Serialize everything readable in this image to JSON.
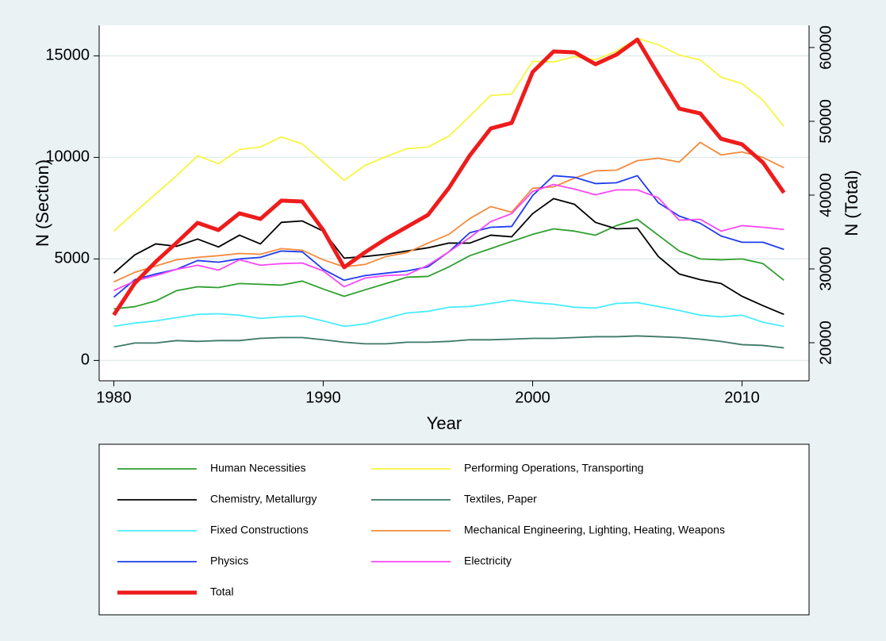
{
  "chart_data": {
    "type": "line",
    "x_label": "Year",
    "y_label": "N (Section)",
    "y2_label": "N (Total)",
    "x": [
      1980,
      1981,
      1982,
      1983,
      1984,
      1985,
      1986,
      1987,
      1988,
      1989,
      1990,
      1991,
      1992,
      1993,
      1994,
      1995,
      1996,
      1997,
      1998,
      1999,
      2000,
      2001,
      2002,
      2003,
      2004,
      2005,
      2006,
      2007,
      2008,
      2009,
      2010,
      2011,
      2012
    ],
    "xlim": [
      1979.3,
      2013.2
    ],
    "xticks": [
      1980,
      1990,
      2000,
      2010
    ],
    "ylim": [
      -1000,
      16500
    ],
    "yticks": [
      0,
      5000,
      10000,
      15000
    ],
    "y2lim": [
      14840,
      63000
    ],
    "y2ticks": [
      20000,
      30000,
      40000,
      50000,
      60000
    ],
    "grid": true,
    "series": [
      {
        "name": "Human Necessities",
        "color": "#2ea02e",
        "values": [
          2540,
          2650,
          2930,
          3440,
          3630,
          3590,
          3790,
          3750,
          3710,
          3910,
          3520,
          3160,
          3480,
          3790,
          4100,
          4140,
          4610,
          5160,
          5510,
          5860,
          6210,
          6480,
          6370,
          6170,
          6640,
          6950,
          6170,
          5390,
          5000,
          4960,
          5000,
          4770,
          3950
        ]
      },
      {
        "name": "Performing Operations, Transporting",
        "color": "#f7f540",
        "values": [
          6370,
          7300,
          8200,
          9100,
          10080,
          9690,
          10390,
          10510,
          11010,
          10660,
          9770,
          8870,
          9610,
          10040,
          10430,
          10510,
          11050,
          12030,
          13050,
          13120,
          14730,
          14700,
          14960,
          14800,
          15230,
          15860,
          15550,
          15040,
          14800,
          13950,
          13630,
          12810,
          11520
        ]
      },
      {
        "name": "Chemistry, Metallurgy",
        "color": "#000000",
        "values": [
          4300,
          5200,
          5740,
          5620,
          5980,
          5590,
          6170,
          5740,
          6800,
          6870,
          6370,
          5040,
          5120,
          5230,
          5390,
          5550,
          5780,
          5780,
          6170,
          6090,
          7230,
          7970,
          7690,
          6800,
          6480,
          6520,
          5120,
          4260,
          3980,
          3790,
          3160,
          2700,
          2270
        ]
      },
      {
        "name": "Textiles, Paper",
        "color": "#3d7868",
        "values": [
          660,
          860,
          860,
          980,
          940,
          980,
          980,
          1090,
          1130,
          1130,
          1020,
          900,
          820,
          820,
          900,
          900,
          940,
          1020,
          1020,
          1050,
          1090,
          1090,
          1130,
          1170,
          1170,
          1210,
          1170,
          1130,
          1050,
          940,
          780,
          740,
          620
        ]
      },
      {
        "name": "Fixed Constructions",
        "color": "#48ecfb",
        "values": [
          1680,
          1840,
          1950,
          2110,
          2270,
          2300,
          2230,
          2070,
          2150,
          2190,
          1950,
          1680,
          1800,
          2070,
          2340,
          2420,
          2620,
          2660,
          2810,
          2970,
          2850,
          2770,
          2620,
          2580,
          2810,
          2850,
          2660,
          2460,
          2230,
          2150,
          2230,
          1880,
          1680
        ]
      },
      {
        "name": "Mechanical Engineering, Lighting, Heating, Weapons",
        "color": "#f58a3c",
        "values": [
          3870,
          4340,
          4650,
          4960,
          5080,
          5160,
          5270,
          5230,
          5510,
          5430,
          4960,
          4610,
          4730,
          5120,
          5310,
          5780,
          6210,
          6990,
          7580,
          7300,
          8480,
          8550,
          8980,
          9340,
          9370,
          9840,
          9960,
          9770,
          10740,
          10120,
          10270,
          10000,
          9490
        ]
      },
      {
        "name": "Physics",
        "color": "#1f3cf0",
        "values": [
          3120,
          3980,
          4260,
          4490,
          4920,
          4840,
          5000,
          5080,
          5390,
          5350,
          4490,
          3950,
          4180,
          4300,
          4410,
          4610,
          5350,
          6290,
          6560,
          6600,
          8120,
          9100,
          9020,
          8710,
          8750,
          9100,
          7770,
          7110,
          6760,
          6130,
          5820,
          5820,
          5470
        ]
      },
      {
        "name": "Electricity",
        "color": "#f948f5",
        "values": [
          3440,
          3910,
          4180,
          4490,
          4690,
          4450,
          4960,
          4690,
          4770,
          4800,
          4410,
          3630,
          4060,
          4180,
          4220,
          4690,
          5350,
          6050,
          6840,
          7230,
          8320,
          8670,
          8440,
          8160,
          8400,
          8400,
          8010,
          6910,
          6950,
          6370,
          6640,
          6560,
          6450
        ]
      },
      {
        "name": "Total",
        "color": "#ee1c1c",
        "axis": "y2",
        "values": [
          23760,
          28060,
          30970,
          33550,
          36240,
          35270,
          37530,
          36770,
          39250,
          39140,
          35270,
          30220,
          32260,
          34090,
          35700,
          37310,
          40970,
          45380,
          49030,
          49780,
          56670,
          59460,
          59350,
          57740,
          59030,
          61080,
          56340,
          51720,
          51080,
          47630,
          46880,
          44410,
          40320
        ]
      }
    ]
  }
}
